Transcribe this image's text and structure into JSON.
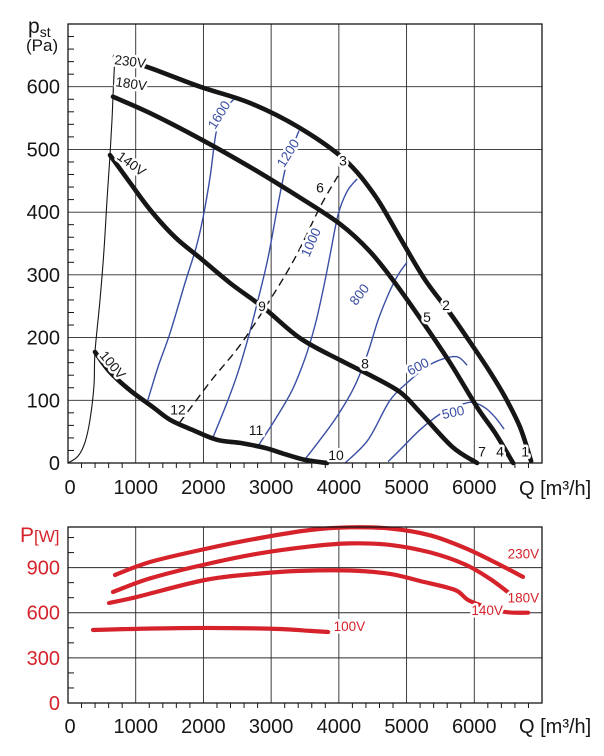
{
  "figure": {
    "kind": "fan-performance-datasheet",
    "colors": {
      "black": "#161616",
      "blue": "#3a4fa4",
      "red": "#d6232b",
      "grid": "#2a2a2a",
      "bg": "#ffffff"
    }
  },
  "chart_data": [
    {
      "id": "pressure",
      "type": "line",
      "title": "",
      "xlabel": "Q [m³/h]",
      "ylabel_parts": {
        "sym": "p",
        "sub": "st",
        "unit": "(Pa)"
      },
      "xlim": [
        0,
        7000
      ],
      "ylim": [
        0,
        700
      ],
      "x_ticks": [
        0,
        1000,
        2000,
        3000,
        4000,
        5000,
        6000
      ],
      "y_ticks": [
        0,
        100,
        200,
        300,
        400,
        500,
        600
      ],
      "x_minor_step": 200,
      "y_minor_step": 20,
      "grid": true,
      "series": [
        {
          "name": "230V",
          "role": "voltage-curve",
          "label_at": [
            679,
            636
          ],
          "label_rot": 7,
          "points": [
            [
              694,
              648
            ],
            [
              1211,
              630
            ],
            [
              1950,
              600
            ],
            [
              2688,
              574
            ],
            [
              3427,
              534
            ],
            [
              4092,
              483
            ],
            [
              4535,
              426
            ],
            [
              4904,
              359
            ],
            [
              5273,
              292
            ],
            [
              5642,
              239
            ],
            [
              5937,
              193
            ],
            [
              6233,
              145
            ],
            [
              6455,
              105
            ],
            [
              6676,
              57
            ],
            [
              6839,
              3
            ]
          ]
        },
        {
          "name": "180V",
          "role": "voltage-curve",
          "label_at": [
            694,
            601
          ],
          "label_rot": 8,
          "points": [
            [
              664,
              584
            ],
            [
              1211,
              558
            ],
            [
              1950,
              517
            ],
            [
              2688,
              472
            ],
            [
              3427,
              423
            ],
            [
              4018,
              381
            ],
            [
              4461,
              337
            ],
            [
              4830,
              287
            ],
            [
              5199,
              231
            ],
            [
              5642,
              160
            ],
            [
              6041,
              89
            ],
            [
              6307,
              48
            ],
            [
              6573,
              0
            ]
          ]
        },
        {
          "name": "140V",
          "role": "voltage-curve",
          "label_at": [
            709,
            486
          ],
          "label_rot": 36,
          "points": [
            [
              620,
              491
            ],
            [
              916,
              447
            ],
            [
              1211,
              404
            ],
            [
              1581,
              360
            ],
            [
              1950,
              327
            ],
            [
              2393,
              287
            ],
            [
              2896,
              247
            ],
            [
              3427,
              199
            ],
            [
              4018,
              164
            ],
            [
              4461,
              140
            ],
            [
              4904,
              113
            ],
            [
              5199,
              81
            ],
            [
              5672,
              26
            ],
            [
              6041,
              0
            ]
          ]
        },
        {
          "name": "100V",
          "role": "voltage-curve",
          "label_at": [
            458,
            171
          ],
          "label_rot": 50,
          "points": [
            [
              399,
              177
            ],
            [
              620,
              145
            ],
            [
              916,
              116
            ],
            [
              1256,
              89
            ],
            [
              1507,
              69
            ],
            [
              1832,
              53
            ],
            [
              2201,
              37
            ],
            [
              2541,
              32
            ],
            [
              2910,
              24
            ],
            [
              3205,
              14
            ],
            [
              3501,
              5
            ],
            [
              3826,
              0
            ]
          ]
        }
      ],
      "stall_line": {
        "points": [
          [
            0,
            0
          ],
          [
            148,
            11
          ],
          [
            251,
            33
          ],
          [
            325,
            69
          ],
          [
            384,
            124
          ],
          [
            399,
            177
          ],
          [
            473,
            260
          ],
          [
            532,
            340
          ],
          [
            576,
            419
          ],
          [
            620,
            491
          ],
          [
            650,
            547
          ],
          [
            664,
            584
          ],
          [
            679,
            619
          ],
          [
            694,
            648
          ]
        ]
      },
      "system_curve": {
        "style": "dashed",
        "points": [
          [
            1654,
            65
          ],
          [
            2097,
            129
          ],
          [
            2541,
            188
          ],
          [
            2954,
            255
          ],
          [
            3353,
            327
          ],
          [
            3722,
            408
          ],
          [
            3988,
            458
          ]
        ]
      },
      "rpm_curves": [
        {
          "name": "1600",
          "label_at": [
            2171,
            531
          ],
          "label_rot": -58,
          "points": [
            [
              1167,
              96
            ],
            [
              1329,
              153
            ],
            [
              1507,
              207
            ],
            [
              1728,
              287
            ],
            [
              1891,
              343
            ],
            [
              1994,
              391
            ],
            [
              2097,
              455
            ],
            [
              2186,
              526
            ],
            [
              2290,
              560
            ],
            [
              2497,
              585
            ]
          ]
        },
        {
          "name": "1200",
          "label_at": [
            3190,
            470
          ],
          "label_rot": -58,
          "points": [
            [
              2142,
              41
            ],
            [
              2319,
              88
            ],
            [
              2496,
              140
            ],
            [
              2659,
              199
            ],
            [
              2806,
              260
            ],
            [
              2954,
              327
            ],
            [
              3087,
              404
            ],
            [
              3205,
              467
            ],
            [
              3309,
              502
            ],
            [
              3412,
              530
            ]
          ]
        },
        {
          "name": "1000",
          "label_at": [
            3559,
            327
          ],
          "label_rot": -66,
          "points": [
            [
              2806,
              27
            ],
            [
              3057,
              69
            ],
            [
              3309,
              116
            ],
            [
              3501,
              167
            ],
            [
              3649,
              220
            ],
            [
              3767,
              276
            ],
            [
              3871,
              332
            ],
            [
              3989,
              396
            ],
            [
              4121,
              433
            ],
            [
              4269,
              453
            ]
          ]
        },
        {
          "name": "800",
          "label_at": [
            4253,
            250
          ],
          "label_rot": -52,
          "points": [
            [
              3471,
              2
            ],
            [
              3722,
              37
            ],
            [
              3989,
              77
            ],
            [
              4240,
              124
            ],
            [
              4432,
              177
            ],
            [
              4580,
              228
            ],
            [
              4727,
              268
            ],
            [
              4875,
              300
            ],
            [
              5007,
              320
            ]
          ]
        },
        {
          "name": "600",
          "label_at": [
            5051,
            139
          ],
          "label_rot": -27,
          "points": [
            [
              4092,
              0
            ],
            [
              4432,
              37
            ],
            [
              4756,
              100
            ],
            [
              5052,
              132
            ],
            [
              5317,
              155
            ],
            [
              5568,
              167
            ],
            [
              5760,
              169
            ],
            [
              5894,
              156
            ]
          ]
        },
        {
          "name": "500",
          "label_at": [
            5538,
            70
          ],
          "label_rot": -12,
          "points": [
            [
              4727,
              2
            ],
            [
              4904,
              21
            ],
            [
              5199,
              53
            ],
            [
              5494,
              78
            ],
            [
              5760,
              91
            ],
            [
              5967,
              97
            ],
            [
              6159,
              88
            ],
            [
              6307,
              73
            ],
            [
              6440,
              54
            ]
          ]
        }
      ],
      "point_labels": [
        {
          "n": "1",
          "at": [
            6750,
            18
          ]
        },
        {
          "n": "2",
          "at": [
            5582,
            252
          ]
        },
        {
          "n": "3",
          "at": [
            4061,
            482
          ]
        },
        {
          "n": "4",
          "at": [
            6380,
            18
          ]
        },
        {
          "n": "5",
          "at": [
            5302,
            233
          ]
        },
        {
          "n": "6",
          "at": [
            3722,
            439
          ]
        },
        {
          "n": "7",
          "at": [
            6114,
            18
          ]
        },
        {
          "n": "8",
          "at": [
            4386,
            159
          ]
        },
        {
          "n": "9",
          "at": [
            2865,
            250
          ]
        },
        {
          "n": "10",
          "at": [
            3958,
            13
          ]
        },
        {
          "n": "11",
          "at": [
            2776,
            53
          ]
        },
        {
          "n": "12",
          "at": [
            1624,
            85
          ]
        }
      ]
    },
    {
      "id": "power",
      "type": "line",
      "title": "",
      "xlabel": "Q [m³/h]",
      "ylabel_parts": {
        "sym": "P",
        "unit": "[W]"
      },
      "xlim": [
        0,
        7000
      ],
      "ylim": [
        0,
        1170
      ],
      "x_ticks": [
        0,
        1000,
        2000,
        3000,
        4000,
        5000,
        6000
      ],
      "y_ticks": [
        0,
        300,
        600,
        900
      ],
      "x_minor_step": 200,
      "y_minor_step": 100,
      "grid": true,
      "series": [
        {
          "name": "230V",
          "role": "power-curve",
          "label_at": [
            6725,
            960
          ],
          "label_anchor": "middle",
          "points": [
            [
              694,
              851
            ],
            [
              1211,
              937
            ],
            [
              2023,
              1024
            ],
            [
              2836,
              1097
            ],
            [
              3575,
              1150
            ],
            [
              4166,
              1168
            ],
            [
              4757,
              1160
            ],
            [
              5347,
              1115
            ],
            [
              5864,
              1030
            ],
            [
              6307,
              935
            ],
            [
              6720,
              838
            ]
          ]
        },
        {
          "name": "180V",
          "role": "power-curve",
          "label_at": [
            6725,
            668
          ],
          "label_anchor": "middle",
          "points": [
            [
              664,
              738
            ],
            [
              1211,
              828
            ],
            [
              2023,
              921
            ],
            [
              2836,
              995
            ],
            [
              3575,
              1041
            ],
            [
              4166,
              1061
            ],
            [
              4757,
              1051
            ],
            [
              5347,
              1001
            ],
            [
              5864,
              921
            ],
            [
              6233,
              825
            ],
            [
              6559,
              715
            ]
          ]
        },
        {
          "name": "140V",
          "role": "power-curve",
          "label_at": [
            6189,
            585
          ],
          "label_anchor": "middle",
          "points": [
            [
              606,
              665
            ],
            [
              1019,
              705
            ],
            [
              2023,
              818
            ],
            [
              2836,
              861
            ],
            [
              3427,
              878
            ],
            [
              4166,
              881
            ],
            [
              4757,
              858
            ],
            [
              5199,
              811
            ],
            [
              5716,
              751
            ],
            [
              5937,
              678
            ],
            [
              6411,
              608
            ],
            [
              6795,
              600
            ]
          ]
        },
        {
          "name": "100V",
          "role": "power-curve",
          "label_at": [
            4155,
            478
          ],
          "label_anchor": "middle",
          "points": [
            [
              369,
              485
            ],
            [
              916,
              492
            ],
            [
              1654,
              498
            ],
            [
              2393,
              498
            ],
            [
              3131,
              492
            ],
            [
              3575,
              479
            ],
            [
              3841,
              472
            ]
          ]
        }
      ]
    }
  ]
}
